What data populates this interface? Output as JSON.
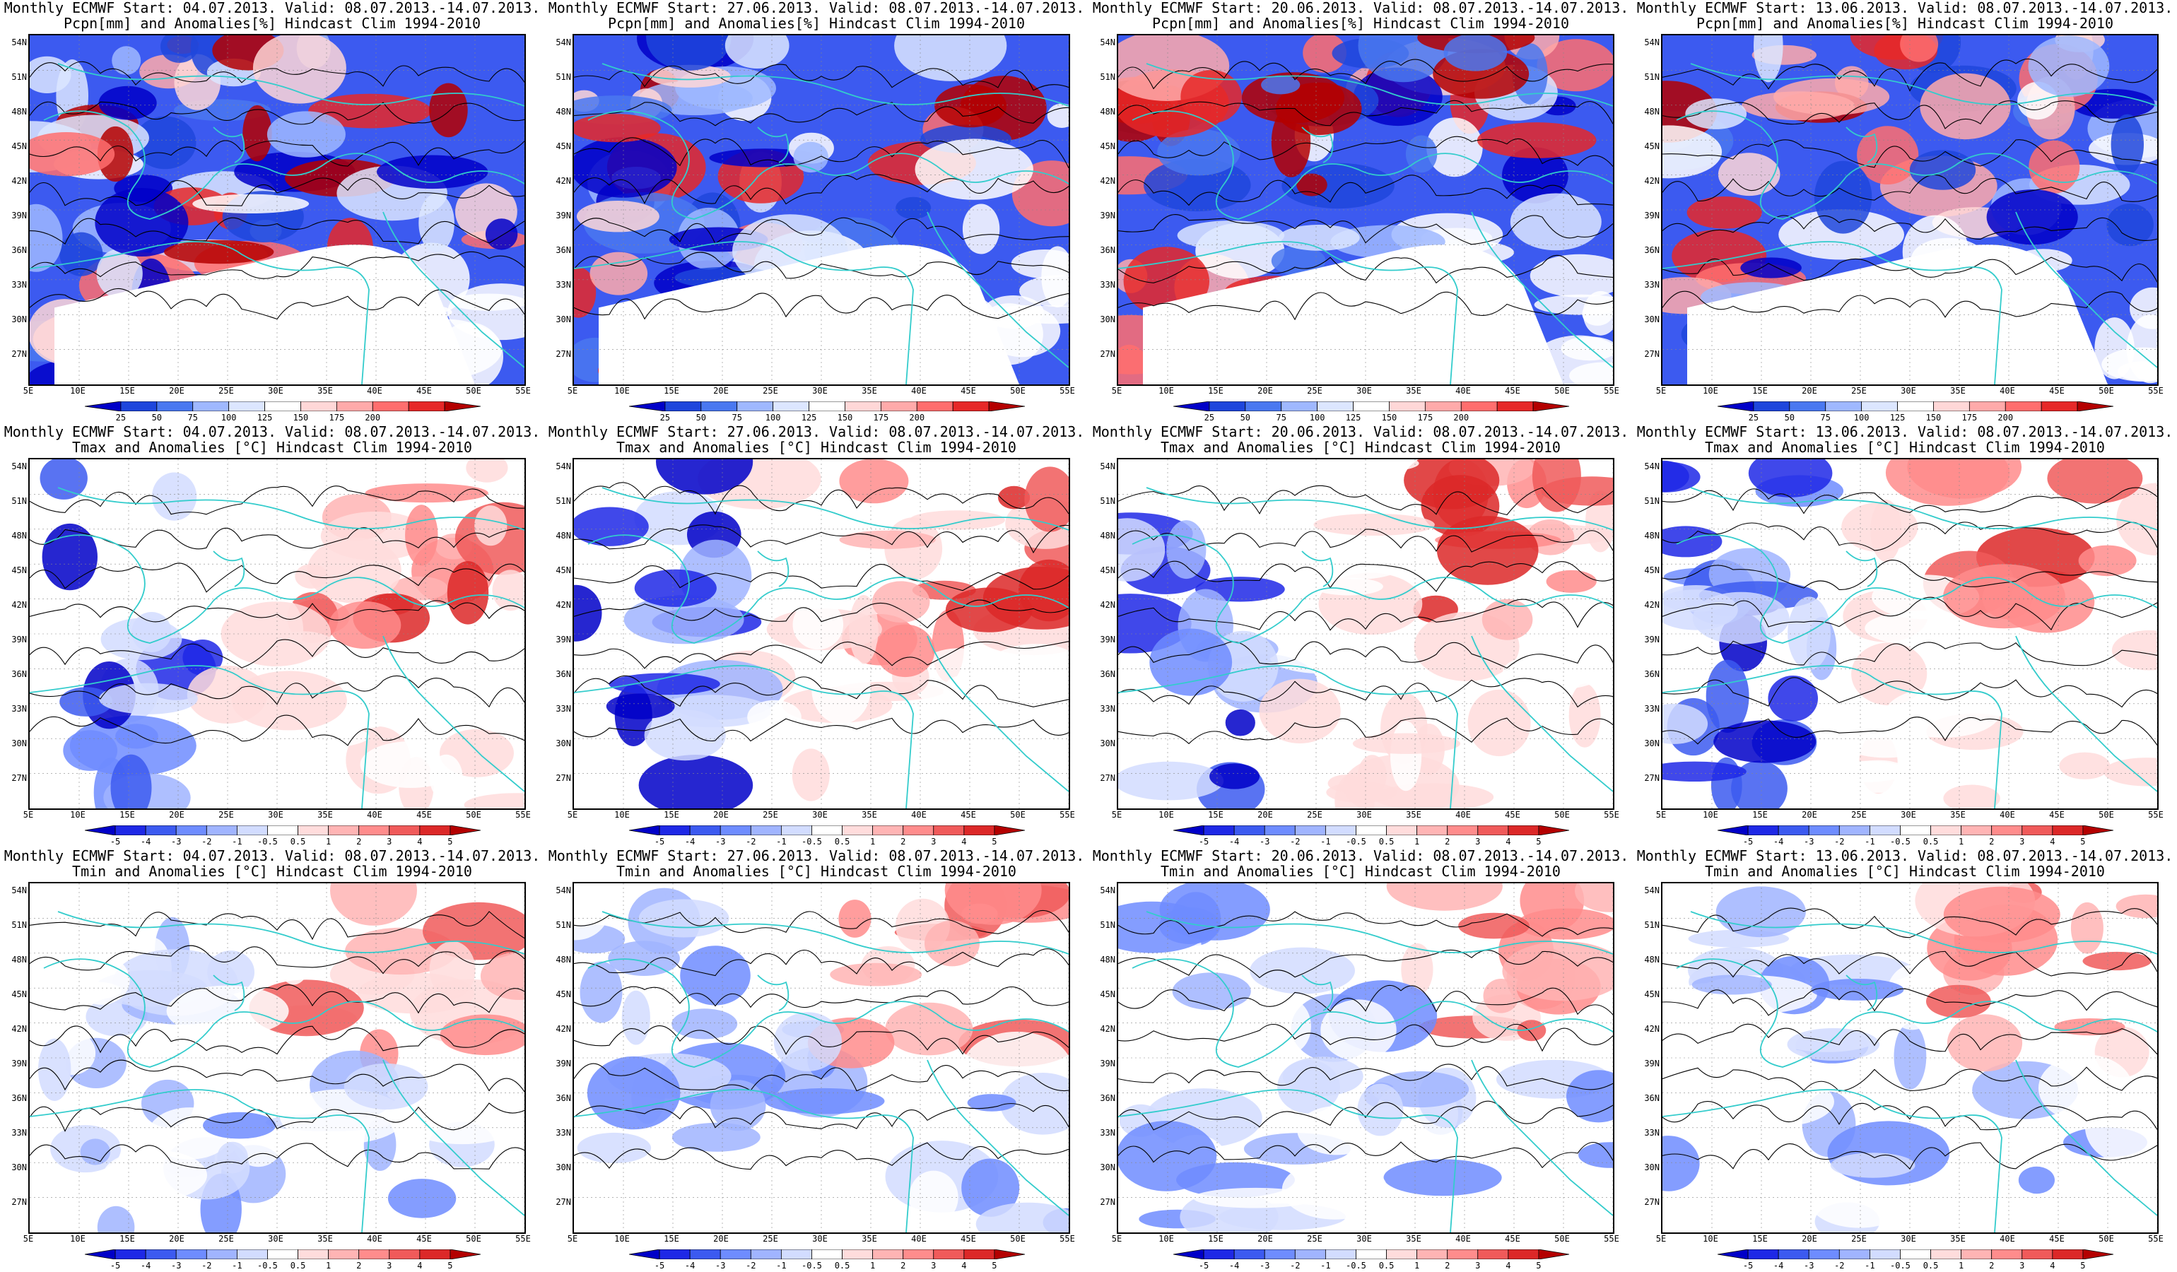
{
  "panels": [
    {
      "row": 0,
      "col": 0,
      "variable": "pcpn",
      "title1": "Monthly ECMWF Start: 04.07.2013. Valid: 08.07.2013.-14.07.2013.",
      "title2": "Pcpn[mm] and Anomalies[%] Hindcast Clim 1994-2010"
    },
    {
      "row": 0,
      "col": 1,
      "variable": "pcpn",
      "title1": "Monthly ECMWF Start: 27.06.2013. Valid: 08.07.2013.-14.07.2013.",
      "title2": "Pcpn[mm] and Anomalies[%] Hindcast Clim 1994-2010"
    },
    {
      "row": 0,
      "col": 2,
      "variable": "pcpn",
      "title1": "Monthly ECMWF Start: 20.06.2013. Valid: 08.07.2013.-14.07.2013.",
      "title2": "Pcpn[mm] and Anomalies[%] Hindcast Clim 1994-2010"
    },
    {
      "row": 0,
      "col": 3,
      "variable": "pcpn",
      "title1": "Monthly ECMWF Start: 13.06.2013. Valid: 08.07.2013.-14.07.2013.",
      "title2": "Pcpn[mm] and Anomalies[%] Hindcast Clim 1994-2010"
    },
    {
      "row": 1,
      "col": 0,
      "variable": "tmax",
      "title1": "Monthly ECMWF Start: 04.07.2013. Valid: 08.07.2013.-14.07.2013.",
      "title2": "Tmax and Anomalies [°C] Hindcast Clim 1994-2010"
    },
    {
      "row": 1,
      "col": 1,
      "variable": "tmax",
      "title1": "Monthly ECMWF Start: 27.06.2013. Valid: 08.07.2013.-14.07.2013.",
      "title2": "Tmax and Anomalies [°C] Hindcast Clim 1994-2010"
    },
    {
      "row": 1,
      "col": 2,
      "variable": "tmax",
      "title1": "Monthly ECMWF Start: 20.06.2013. Valid: 08.07.2013.-14.07.2013.",
      "title2": "Tmax and Anomalies [°C] Hindcast Clim 1994-2010"
    },
    {
      "row": 1,
      "col": 3,
      "variable": "tmax",
      "title1": "Monthly ECMWF Start: 13.06.2013. Valid: 08.07.2013.-14.07.2013.",
      "title2": "Tmax and Anomalies [°C] Hindcast Clim 1994-2010"
    },
    {
      "row": 2,
      "col": 0,
      "variable": "tmin",
      "title1": "Monthly ECMWF Start: 04.07.2013. Valid: 08.07.2013.-14.07.2013.",
      "title2": "Tmin and Anomalies [°C] Hindcast Clim 1994-2010"
    },
    {
      "row": 2,
      "col": 1,
      "variable": "tmin",
      "title1": "Monthly ECMWF Start: 27.06.2013. Valid: 08.07.2013.-14.07.2013.",
      "title2": "Tmin and Anomalies [°C] Hindcast Clim 1994-2010"
    },
    {
      "row": 2,
      "col": 2,
      "variable": "tmin",
      "title1": "Monthly ECMWF Start: 20.06.2013. Valid: 08.07.2013.-14.07.2013.",
      "title2": "Tmin and Anomalies [°C] Hindcast Clim 1994-2010"
    },
    {
      "row": 2,
      "col": 3,
      "variable": "tmin",
      "title1": "Monthly ECMWF Start: 13.06.2013. Valid: 08.07.2013.-14.07.2013.",
      "title2": "Tmin and Anomalies [°C] Hindcast Clim 1994-2010"
    }
  ],
  "lat_labels": [
    "54N",
    "51N",
    "48N",
    "45N",
    "42N",
    "39N",
    "36N",
    "33N",
    "30N",
    "27N"
  ],
  "lon_labels": [
    "5E",
    "10E",
    "15E",
    "20E",
    "25E",
    "30E",
    "35E",
    "40E",
    "45E",
    "50E",
    "55E"
  ],
  "colorbars": {
    "pcpn": {
      "labels": [
        "25",
        "50",
        "75",
        "100",
        "125",
        "150",
        "175",
        "200"
      ],
      "colors": [
        "#0000c8",
        "#1e46dc",
        "#4a78f0",
        "#9fb8ff",
        "#dce6ff",
        "#ffffff",
        "#ffd7d7",
        "#ffaaaa",
        "#ff6e6e",
        "#e62828",
        "#b40000"
      ]
    },
    "temp": {
      "labels": [
        "-5",
        "-4",
        "-3",
        "-2",
        "-1",
        "-0.5",
        "0.5",
        "1",
        "2",
        "3",
        "4",
        "5"
      ],
      "colors": [
        "#0000c8",
        "#1e28e6",
        "#3c5af0",
        "#6e8cff",
        "#a0b4ff",
        "#d2dcff",
        "#ffffff",
        "#ffdcdc",
        "#ffb4b4",
        "#ff8c8c",
        "#f05a5a",
        "#dc2828",
        "#b40000"
      ]
    }
  },
  "map_colors": {
    "coast": "#33cccc",
    "contour": "#000000",
    "pcpn_dry": "#0000c8",
    "pcpn_wet": "#c80000"
  }
}
